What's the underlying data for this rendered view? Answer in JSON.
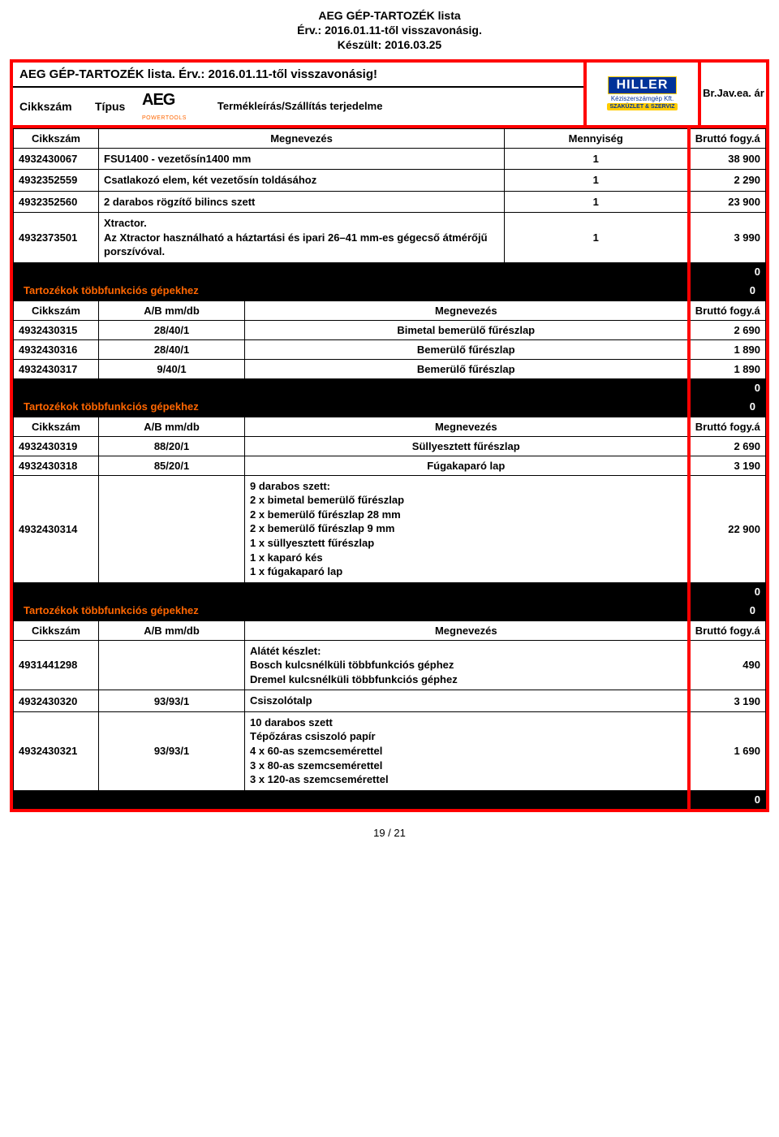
{
  "header": {
    "line1": "AEG GÉP-TARTOZÉK lista",
    "line2": "Érv.: 2016.01.11-től visszavonásig.",
    "line3": "Készült: 2016.03.25"
  },
  "topbox": {
    "title": "AEG GÉP-TARTOZÉK lista. Érv.: 2016.01.11-től visszavonásig!",
    "cikkszam": "Cikkszám",
    "tipus": "Típus",
    "logo": "AEG",
    "logo_sub": "POWERTOOLS",
    "desc": "Termékleírás/Szállítás terjedelme",
    "hiller": "HILLER",
    "hiller_sub": "Kéziszerszámgép Kft.",
    "hiller_tag": "SZAKÜZLET & SZERVIZ",
    "price": "Br.Jav.ea. ár"
  },
  "headers": {
    "cikkszam": "Cikkszám",
    "megnevezes": "Megnevezés",
    "mennyiseg": "Mennyiség",
    "brutto": "Bruttó fogy.á",
    "ab": "A/B mm/db"
  },
  "section_title": "Tartozékok többfunkciós gépekhez",
  "sec1": [
    {
      "code": "4932430067",
      "name": "FSU1400 - vezetősín1400 mm",
      "qty": "1",
      "price": "38 900"
    },
    {
      "code": "4932352559",
      "name": "Csatlakozó elem, két vezetősín toldásához",
      "qty": "1",
      "price": "2 290"
    },
    {
      "code": "4932352560",
      "name": "2 darabos rögzítő bilincs szett",
      "qty": "1",
      "price": "23 900"
    },
    {
      "code": "4932373501",
      "name": "Xtractor.\nAz Xtractor használható a háztartási és ipari 26–41 mm-es gégecső átmérőjű porszívóval.",
      "qty": "1",
      "price": "3 990"
    }
  ],
  "sec2": [
    {
      "code": "4932430315",
      "ab": "28/40/1",
      "name": "Bimetal bemerülő fűrészlap",
      "price": "2 690"
    },
    {
      "code": "4932430316",
      "ab": "28/40/1",
      "name": "Bemerülő fűrészlap",
      "price": "1 890"
    },
    {
      "code": "4932430317",
      "ab": "9/40/1",
      "name": "Bemerülő fűrészlap",
      "price": "1 890"
    }
  ],
  "sec3": [
    {
      "code": "4932430319",
      "ab": "88/20/1",
      "name": "Süllyesztett fűrészlap",
      "price": "2 690"
    },
    {
      "code": "4932430318",
      "ab": "85/20/1",
      "name": "Fúgakaparó lap",
      "price": "3 190"
    },
    {
      "code": "4932430314",
      "ab": "",
      "name": "9 darabos szett:\n2 x bimetal bemerülő fűrészlap\n2 x bemerülő fűrészlap 28 mm\n2 x bemerülő fűrészlap 9 mm\n1 x süllyesztett fűrészlap\n1 x kaparó kés\n1 x fúgakaparó lap",
      "price": "22 900"
    }
  ],
  "sec4": [
    {
      "code": "4931441298",
      "ab": "",
      "name": "Alátét készlet:\nBosch kulcsnélküli többfunkciós géphez\nDremel kulcsnélküli többfunkciós géphez",
      "price": "490"
    },
    {
      "code": "4932430320",
      "ab": "93/93/1",
      "name": "Csiszolótalp",
      "price": "3 190"
    },
    {
      "code": "4932430321",
      "ab": "93/93/1",
      "name": "10 darabos szett\nTépőzáras csiszoló papír\n4 x 60-as szemcsemérettel\n3 x 80-as szemcsemérettel\n3 x 120-as szemcsemérettel",
      "price": "1 690"
    }
  ],
  "zero": "0",
  "footer": "19 / 21"
}
